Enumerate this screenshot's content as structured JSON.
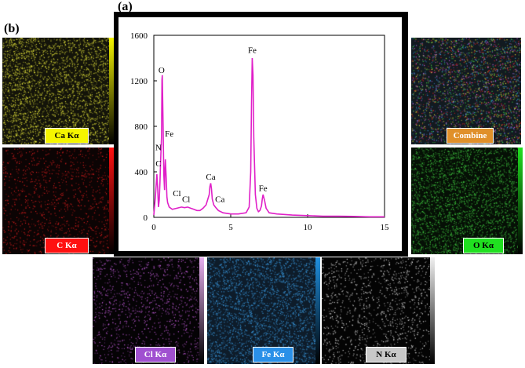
{
  "panels": {
    "a_label": "(a)",
    "b_label": "(b)"
  },
  "maps": [
    {
      "key": "ca",
      "label": "Ca Kα",
      "dot_color": "#e8e83c",
      "label_bg": "#f5f500",
      "label_fg": "#000000",
      "bar_color": "#f5f500"
    },
    {
      "key": "c",
      "label": "C Kα",
      "dot_color": "#e02020",
      "label_bg": "#ff1010",
      "label_fg": "#ffffff",
      "bar_color": "#ff1010"
    },
    {
      "key": "combine",
      "label": "Combine",
      "dot_color": "#4aa8d0",
      "label_bg": "#e0902a",
      "label_fg": "#ffffff",
      "bar_color": ""
    },
    {
      "key": "o",
      "label": "O Kα",
      "dot_color": "#40c840",
      "label_bg": "#20e020",
      "label_fg": "#000000",
      "bar_color": "#20e020"
    },
    {
      "key": "cl",
      "label": "Cl Kα",
      "dot_color": "#c860e0",
      "label_bg": "#a050d0",
      "label_fg": "#ffffff",
      "bar_color": "#e8b0f0"
    },
    {
      "key": "fe",
      "label": "Fe Kα",
      "dot_color": "#3a9ae0",
      "label_bg": "#2a90e8",
      "label_fg": "#ffffff",
      "bar_color": "#2090e0"
    },
    {
      "key": "n",
      "label": "N Kα",
      "dot_color": "#e8e8e8",
      "label_bg": "#c8c8c8",
      "label_fg": "#000000",
      "bar_color": "#f0f0f0"
    }
  ],
  "chart_data": {
    "type": "line",
    "title": "",
    "xlabel": "",
    "ylabel": "",
    "xlim": [
      0,
      15
    ],
    "ylim": [
      0,
      1600
    ],
    "xticks": [
      0,
      5,
      10,
      15
    ],
    "yticks": [
      0,
      400,
      800,
      1200,
      1600
    ],
    "series": [
      {
        "color": "#e020c8",
        "x": [
          0.0,
          0.1,
          0.2,
          0.25,
          0.3,
          0.35,
          0.4,
          0.45,
          0.5,
          0.53,
          0.55,
          0.6,
          0.65,
          0.7,
          0.72,
          0.75,
          0.8,
          0.85,
          0.9,
          1.0,
          1.2,
          1.5,
          1.8,
          2.0,
          2.2,
          2.4,
          2.6,
          2.8,
          3.0,
          3.2,
          3.4,
          3.6,
          3.65,
          3.7,
          3.75,
          3.8,
          3.9,
          4.0,
          4.2,
          4.5,
          5.0,
          5.5,
          6.0,
          6.2,
          6.3,
          6.35,
          6.4,
          6.45,
          6.5,
          6.6,
          6.7,
          6.8,
          6.9,
          7.0,
          7.05,
          7.1,
          7.2,
          7.3,
          7.5,
          8.0,
          9.0,
          10.0,
          11.0,
          12.0,
          13.0,
          14.0,
          15.0
        ],
        "y": [
          20,
          180,
          380,
          260,
          90,
          150,
          300,
          520,
          700,
          1210,
          1250,
          820,
          380,
          240,
          420,
          510,
          360,
          180,
          130,
          90,
          70,
          80,
          90,
          85,
          90,
          80,
          70,
          60,
          60,
          80,
          110,
          200,
          270,
          300,
          250,
          160,
          110,
          90,
          60,
          40,
          30,
          30,
          40,
          90,
          400,
          1000,
          1400,
          1250,
          700,
          200,
          80,
          50,
          60,
          100,
          160,
          200,
          150,
          80,
          40,
          30,
          20,
          15,
          10,
          10,
          8,
          5,
          5
        ]
      }
    ],
    "annotations": [
      {
        "text": "O",
        "x": 0.5,
        "y": 1270
      },
      {
        "text": "Fe",
        "x": 1.0,
        "y": 710
      },
      {
        "text": "N",
        "x": 0.3,
        "y": 590
      },
      {
        "text": "C",
        "x": 0.3,
        "y": 450
      },
      {
        "text": "Cl",
        "x": 1.5,
        "y": 185
      },
      {
        "text": "Cl",
        "x": 2.1,
        "y": 135
      },
      {
        "text": "Ca",
        "x": 3.7,
        "y": 330
      },
      {
        "text": "Ca",
        "x": 4.3,
        "y": 135
      },
      {
        "text": "Fe",
        "x": 6.4,
        "y": 1445
      },
      {
        "text": "Fe",
        "x": 7.1,
        "y": 230
      }
    ]
  }
}
